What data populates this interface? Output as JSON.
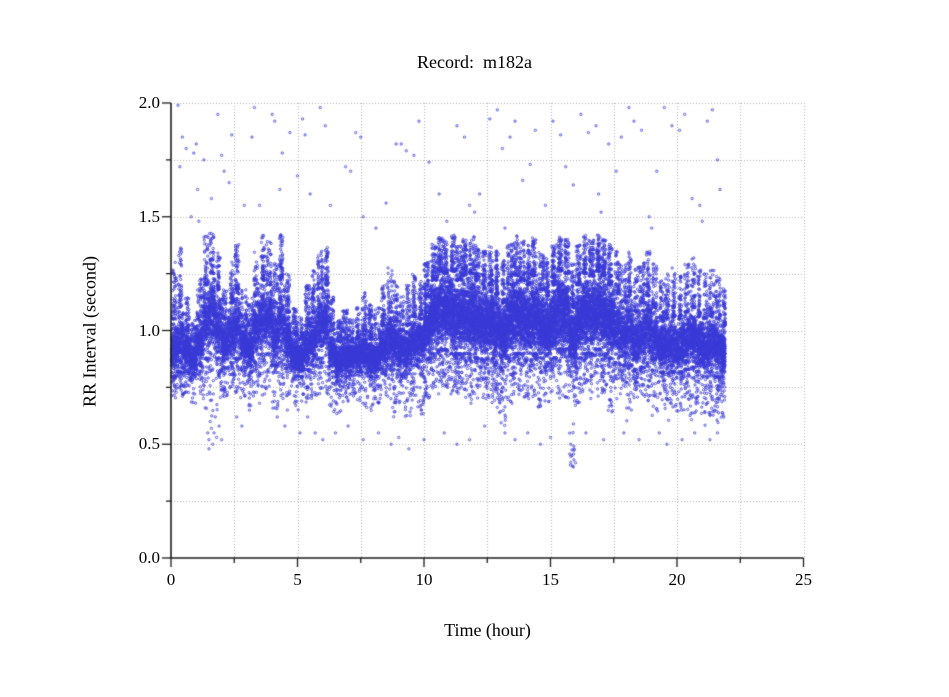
{
  "chart_data": {
    "type": "scatter",
    "title": "Record:  m182a",
    "xlabel": "Time (hour)",
    "ylabel": "RR Interval (second)",
    "series_name": "RR intervals",
    "xlim": [
      0,
      25
    ],
    "ylim": [
      0,
      2
    ],
    "xticks": [
      "0",
      "5",
      "10",
      "15",
      "20",
      "25"
    ],
    "yticks": [
      "0.0",
      "0.5",
      "1.0",
      "1.5",
      "2.0"
    ],
    "x_major_step": 5,
    "x_minor_step": 2.5,
    "y_major_step": 0.5,
    "y_minor_step": 0.25,
    "grid": "dotted gridlines at every minor step, open L-shaped axes (left and bottom only)",
    "legend": "none",
    "marker": {
      "shape": "open-circle",
      "color": "#3939d6",
      "radius_px": 1.15
    },
    "colors": {
      "marker": "#3939d6",
      "grid": "#b0b0b0",
      "axis": "#1c1c1c",
      "background": "#ffffff",
      "text": "#000000"
    },
    "band": {
      "description": "dense RR-interval band envelope per 0.25 h segment: [low_tail, core_bottom, core_top, high_tail] in seconds",
      "h_start": 0,
      "h_step": 0.25,
      "x_data_max": 21.9,
      "points_per_segment": 290,
      "dense_region": [
        10,
        17.5
      ],
      "dense_multiplier": 1.35,
      "segments": [
        [
          0.7,
          0.8,
          1.05,
          1.3
        ],
        [
          0.7,
          0.82,
          1.1,
          1.38
        ],
        [
          0.72,
          0.82,
          1.0,
          1.15
        ],
        [
          0.68,
          0.8,
          0.95,
          1.05
        ],
        [
          0.72,
          0.85,
          1.05,
          1.25
        ],
        [
          0.65,
          0.88,
          1.2,
          1.42
        ],
        [
          0.62,
          0.9,
          1.25,
          1.43
        ],
        [
          0.65,
          0.88,
          1.18,
          1.35
        ],
        [
          0.7,
          0.84,
          1.05,
          1.18
        ],
        [
          0.72,
          0.86,
          1.12,
          1.3
        ],
        [
          0.72,
          0.88,
          1.18,
          1.38
        ],
        [
          0.7,
          0.84,
          1.05,
          1.2
        ],
        [
          0.66,
          0.82,
          1.02,
          1.15
        ],
        [
          0.7,
          0.86,
          1.15,
          1.35
        ],
        [
          0.7,
          0.9,
          1.22,
          1.42
        ],
        [
          0.72,
          0.9,
          1.2,
          1.4
        ],
        [
          0.65,
          0.85,
          1.1,
          1.3
        ],
        [
          0.7,
          0.88,
          1.22,
          1.43
        ],
        [
          0.7,
          0.85,
          1.08,
          1.25
        ],
        [
          0.65,
          0.8,
          0.98,
          1.1
        ],
        [
          0.63,
          0.8,
          0.96,
          1.08
        ],
        [
          0.68,
          0.83,
          1.02,
          1.2
        ],
        [
          0.7,
          0.85,
          1.08,
          1.28
        ],
        [
          0.7,
          0.88,
          1.18,
          1.35
        ],
        [
          0.7,
          0.88,
          1.2,
          1.37
        ],
        [
          0.62,
          0.82,
          1.0,
          1.15
        ],
        [
          0.63,
          0.78,
          0.95,
          1.05
        ],
        [
          0.68,
          0.8,
          0.96,
          1.1
        ],
        [
          0.7,
          0.82,
          0.95,
          1.05
        ],
        [
          0.68,
          0.82,
          0.96,
          1.1
        ],
        [
          0.66,
          0.82,
          1.0,
          1.18
        ],
        [
          0.63,
          0.8,
          0.96,
          1.12
        ],
        [
          0.68,
          0.8,
          0.96,
          1.1
        ],
        [
          0.7,
          0.83,
          1.02,
          1.2
        ],
        [
          0.7,
          0.85,
          1.08,
          1.28
        ],
        [
          0.62,
          0.83,
          1.04,
          1.22
        ],
        [
          0.68,
          0.82,
          1.0,
          1.15
        ],
        [
          0.6,
          0.83,
          1.02,
          1.2
        ],
        [
          0.68,
          0.85,
          1.06,
          1.25
        ],
        [
          0.63,
          0.84,
          1.05,
          1.22
        ],
        [
          0.7,
          0.88,
          1.15,
          1.3
        ],
        [
          0.72,
          0.9,
          1.22,
          1.38
        ],
        [
          0.72,
          0.92,
          1.26,
          1.42
        ],
        [
          0.72,
          0.92,
          1.25,
          1.4
        ],
        [
          0.7,
          0.9,
          1.26,
          1.42
        ],
        [
          0.72,
          0.9,
          1.22,
          1.38
        ],
        [
          0.7,
          0.9,
          1.24,
          1.4
        ],
        [
          0.65,
          0.9,
          1.25,
          1.42
        ],
        [
          0.7,
          0.88,
          1.22,
          1.38
        ],
        [
          0.7,
          0.88,
          1.18,
          1.35
        ],
        [
          0.68,
          0.88,
          1.2,
          1.38
        ],
        [
          0.62,
          0.86,
          1.16,
          1.35
        ],
        [
          0.58,
          0.84,
          1.12,
          1.32
        ],
        [
          0.68,
          0.88,
          1.2,
          1.38
        ],
        [
          0.7,
          0.9,
          1.24,
          1.42
        ],
        [
          0.7,
          0.9,
          1.22,
          1.4
        ],
        [
          0.7,
          0.88,
          1.2,
          1.38
        ],
        [
          0.7,
          0.9,
          1.24,
          1.42
        ],
        [
          0.65,
          0.88,
          1.18,
          1.35
        ],
        [
          0.68,
          0.86,
          1.15,
          1.32
        ],
        [
          0.7,
          0.88,
          1.2,
          1.38
        ],
        [
          0.7,
          0.92,
          1.26,
          1.42
        ],
        [
          0.7,
          0.92,
          1.25,
          1.4
        ],
        [
          0.4,
          0.82,
          1.1,
          1.3
        ],
        [
          0.68,
          0.88,
          1.2,
          1.38
        ],
        [
          0.7,
          0.9,
          1.25,
          1.42
        ],
        [
          0.7,
          0.9,
          1.24,
          1.4
        ],
        [
          0.7,
          0.92,
          1.26,
          1.42
        ],
        [
          0.7,
          0.9,
          1.24,
          1.4
        ],
        [
          0.62,
          0.88,
          1.2,
          1.38
        ],
        [
          0.68,
          0.86,
          1.16,
          1.35
        ],
        [
          0.68,
          0.85,
          1.12,
          1.3
        ],
        [
          0.6,
          0.85,
          1.15,
          1.35
        ],
        [
          0.66,
          0.83,
          1.08,
          1.28
        ],
        [
          0.66,
          0.84,
          1.12,
          1.32
        ],
        [
          0.68,
          0.86,
          1.15,
          1.35
        ],
        [
          0.62,
          0.83,
          1.1,
          1.3
        ],
        [
          0.65,
          0.82,
          1.04,
          1.22
        ],
        [
          0.6,
          0.82,
          1.05,
          1.25
        ],
        [
          0.64,
          0.82,
          1.06,
          1.28
        ],
        [
          0.64,
          0.82,
          1.05,
          1.25
        ],
        [
          0.65,
          0.83,
          1.08,
          1.3
        ],
        [
          0.6,
          0.84,
          1.1,
          1.32
        ],
        [
          0.62,
          0.82,
          1.06,
          1.28
        ],
        [
          0.58,
          0.8,
          1.05,
          1.25
        ],
        [
          0.62,
          0.82,
          1.06,
          1.28
        ],
        [
          0.58,
          0.8,
          1.05,
          1.25
        ],
        [
          0.6,
          0.8,
          1.02,
          1.2
        ]
      ]
    },
    "outliers_high": [
      [
        0.28,
        1.99
      ],
      [
        0.45,
        1.85
      ],
      [
        0.6,
        1.8
      ],
      [
        0.35,
        1.72
      ],
      [
        0.9,
        1.78
      ],
      [
        1.0,
        1.82
      ],
      [
        1.05,
        1.62
      ],
      [
        1.3,
        1.75
      ],
      [
        1.85,
        1.95
      ],
      [
        1.6,
        1.58
      ],
      [
        2.1,
        1.7
      ],
      [
        2.4,
        1.86
      ],
      [
        0.8,
        1.5
      ],
      [
        1.1,
        1.48
      ],
      [
        2.0,
        1.77
      ],
      [
        2.3,
        1.65
      ],
      [
        3.3,
        1.98
      ],
      [
        3.2,
        1.85
      ],
      [
        2.9,
        1.55
      ],
      [
        3.5,
        1.55
      ],
      [
        4.0,
        1.95
      ],
      [
        4.1,
        1.92
      ],
      [
        4.4,
        1.78
      ],
      [
        4.3,
        1.62
      ],
      [
        4.7,
        1.87
      ],
      [
        5.2,
        1.93
      ],
      [
        5.3,
        1.86
      ],
      [
        5.0,
        1.68
      ],
      [
        5.5,
        1.6
      ],
      [
        5.9,
        1.98
      ],
      [
        6.1,
        1.9
      ],
      [
        6.3,
        1.55
      ],
      [
        6.9,
        1.72
      ],
      [
        7.1,
        1.7
      ],
      [
        7.3,
        1.87
      ],
      [
        7.5,
        1.85
      ],
      [
        7.6,
        1.5
      ],
      [
        8.1,
        1.45
      ],
      [
        8.5,
        1.56
      ],
      [
        8.9,
        1.82
      ],
      [
        9.1,
        1.82
      ],
      [
        9.3,
        1.79
      ],
      [
        9.8,
        1.92
      ],
      [
        9.6,
        1.77
      ],
      [
        10.2,
        1.74
      ],
      [
        10.6,
        1.6
      ],
      [
        10.9,
        1.48
      ],
      [
        11.3,
        1.9
      ],
      [
        11.6,
        1.85
      ],
      [
        11.8,
        1.55
      ],
      [
        12.2,
        1.6
      ],
      [
        12.0,
        1.52
      ],
      [
        12.6,
        1.93
      ],
      [
        12.9,
        1.97
      ],
      [
        13.1,
        1.8
      ],
      [
        13.4,
        1.85
      ],
      [
        13.6,
        1.92
      ],
      [
        13.9,
        1.66
      ],
      [
        14.2,
        1.73
      ],
      [
        14.4,
        1.88
      ],
      [
        14.8,
        1.55
      ],
      [
        15.1,
        1.92
      ],
      [
        15.4,
        1.86
      ],
      [
        15.6,
        1.72
      ],
      [
        15.9,
        1.64
      ],
      [
        16.2,
        1.95
      ],
      [
        16.5,
        1.87
      ],
      [
        16.8,
        1.9
      ],
      [
        16.9,
        1.6
      ],
      [
        17.3,
        1.82
      ],
      [
        17.6,
        1.7
      ],
      [
        17.8,
        1.85
      ],
      [
        18.1,
        1.98
      ],
      [
        18.3,
        1.92
      ],
      [
        18.6,
        1.88
      ],
      [
        18.9,
        1.5
      ],
      [
        19.2,
        1.7
      ],
      [
        19.5,
        1.98
      ],
      [
        19.8,
        1.9
      ],
      [
        20.1,
        1.88
      ],
      [
        20.3,
        1.95
      ],
      [
        20.6,
        1.58
      ],
      [
        20.9,
        1.55
      ],
      [
        21.2,
        1.92
      ],
      [
        21.4,
        1.97
      ],
      [
        21.6,
        1.75
      ],
      [
        21.7,
        1.62
      ],
      [
        13.2,
        1.45
      ],
      [
        17.0,
        1.52
      ],
      [
        19.0,
        1.45
      ],
      [
        21.0,
        1.48
      ]
    ],
    "outliers_low": [
      [
        1.45,
        0.55
      ],
      [
        1.5,
        0.52
      ],
      [
        1.55,
        0.6
      ],
      [
        1.6,
        0.57
      ],
      [
        1.65,
        0.5
      ],
      [
        1.7,
        0.55
      ],
      [
        1.75,
        0.62
      ],
      [
        1.8,
        0.53
      ],
      [
        1.9,
        0.58
      ],
      [
        2.0,
        0.52
      ],
      [
        1.5,
        0.48
      ],
      [
        2.6,
        0.62
      ],
      [
        2.8,
        0.58
      ],
      [
        3.1,
        0.65
      ],
      [
        3.5,
        0.68
      ],
      [
        4.2,
        0.62
      ],
      [
        4.5,
        0.58
      ],
      [
        4.6,
        0.65
      ],
      [
        5.1,
        0.55
      ],
      [
        5.4,
        0.62
      ],
      [
        5.7,
        0.55
      ],
      [
        6.0,
        0.52
      ],
      [
        6.5,
        0.55
      ],
      [
        7.0,
        0.58
      ],
      [
        7.6,
        0.52
      ],
      [
        8.2,
        0.55
      ],
      [
        8.7,
        0.5
      ],
      [
        9.0,
        0.53
      ],
      [
        9.4,
        0.48
      ],
      [
        10.0,
        0.52
      ],
      [
        10.8,
        0.55
      ],
      [
        11.3,
        0.5
      ],
      [
        11.8,
        0.52
      ],
      [
        12.4,
        0.58
      ],
      [
        13.2,
        0.55
      ],
      [
        13.6,
        0.52
      ],
      [
        14.1,
        0.55
      ],
      [
        14.6,
        0.5
      ],
      [
        15.0,
        0.53
      ],
      [
        15.8,
        0.5
      ],
      [
        15.85,
        0.45
      ],
      [
        15.8,
        0.42
      ],
      [
        15.9,
        0.4
      ],
      [
        16.4,
        0.55
      ],
      [
        17.1,
        0.52
      ],
      [
        17.9,
        0.55
      ],
      [
        18.5,
        0.52
      ],
      [
        19.3,
        0.55
      ],
      [
        19.6,
        0.5
      ],
      [
        20.2,
        0.52
      ],
      [
        20.7,
        0.55
      ],
      [
        21.3,
        0.52
      ],
      [
        21.6,
        0.55
      ]
    ]
  }
}
